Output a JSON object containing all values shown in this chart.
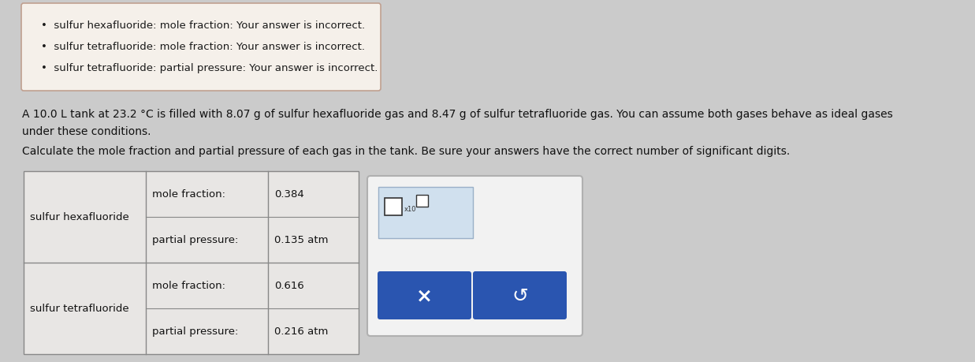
{
  "background_color": "#cbcbcb",
  "error_box": {
    "bg_color": "#f5f0ea",
    "border_color": "#c0a090",
    "items": [
      "sulfur hexafluoride: mole fraction: Your answer is incorrect.",
      "sulfur tetrafluoride: mole fraction: Your answer is incorrect.",
      "sulfur tetrafluoride: partial pressure: Your answer is incorrect."
    ],
    "font_size": 9.5,
    "text_color": "#1a1a1a"
  },
  "problem_text_line1": "A 10.0 L tank at 23.2 °C is filled with 8.07 g of sulfur hexafluoride gas and 8.47 g of sulfur tetrafluoride gas. You can assume both gases behave as ideal gases",
  "problem_text_line2": "under these conditions.",
  "problem_text_line3": "Calculate the mole fraction and partial pressure of each gas in the tank. Be sure your answers have the correct number of significant digits.",
  "problem_font_size": 10.0,
  "table": {
    "border_color": "#888888",
    "row1_label": "sulfur hexafluoride",
    "row2_label": "sulfur tetrafluoride",
    "font_size": 9.5,
    "bg_color": "#e8e6e4"
  },
  "popup_box": {
    "button_color": "#2a55b0",
    "button_text_color": "#ffffff",
    "x_symbol": "×",
    "undo_symbol": "↺"
  }
}
